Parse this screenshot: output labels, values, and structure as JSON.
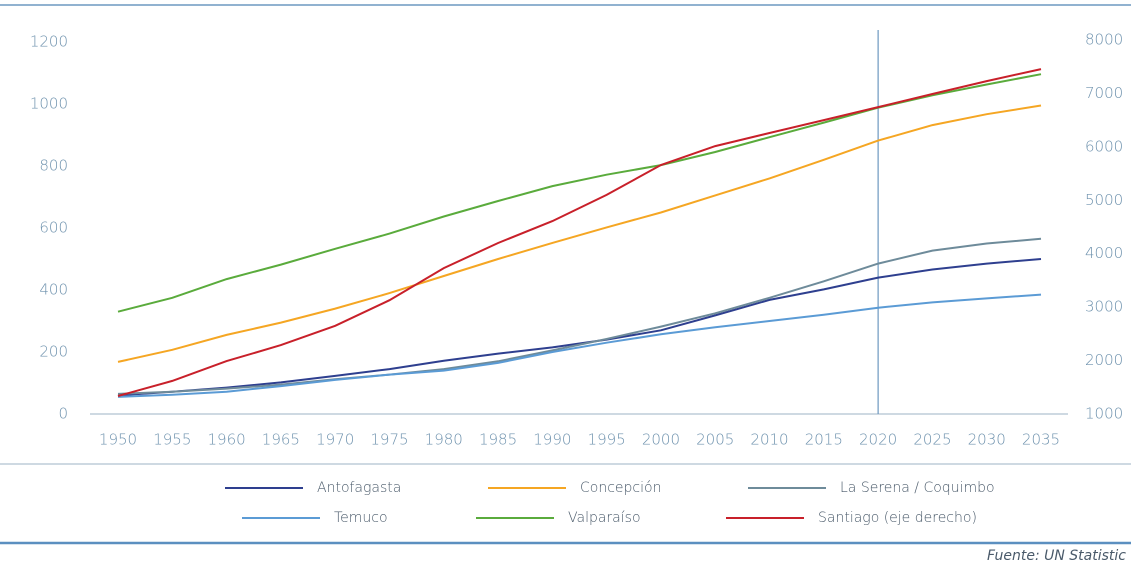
{
  "chart_data": {
    "type": "line",
    "x": [
      1950,
      1955,
      1960,
      1965,
      1970,
      1975,
      1980,
      1985,
      1990,
      1995,
      2000,
      2005,
      2010,
      2015,
      2020,
      2025,
      2030,
      2035
    ],
    "xlim": [
      1950,
      2035
    ],
    "ylim": [
      0,
      1200
    ],
    "yticks": [
      0,
      200,
      400,
      600,
      800,
      1000,
      1200
    ],
    "y2lim": [
      1000,
      8000
    ],
    "y2ticks": [
      1000,
      2000,
      3000,
      4000,
      5000,
      6000,
      7000,
      8000
    ],
    "vline": 2020,
    "series": [
      {
        "name": "Antofagasta",
        "color": "#2e3f8f",
        "values": [
          60,
          72,
          85,
          102,
          123,
          145,
          172,
          195,
          215,
          240,
          270,
          318,
          368,
          402,
          440,
          466,
          485,
          500
        ]
      },
      {
        "name": "Concepción",
        "color": "#f5a623",
        "values": [
          168,
          207,
          255,
          295,
          340,
          390,
          445,
          500,
          552,
          602,
          650,
          705,
          760,
          820,
          882,
          932,
          967,
          995
        ]
      },
      {
        "name": "La Serena / Coquimbo",
        "color": "#6e8b9a",
        "values": [
          65,
          72,
          82,
          95,
          112,
          127,
          145,
          170,
          205,
          242,
          282,
          325,
          375,
          428,
          485,
          527,
          550,
          565
        ]
      },
      {
        "name": "Temuco",
        "color": "#5b9bd5",
        "values": [
          55,
          62,
          72,
          90,
          110,
          127,
          140,
          165,
          200,
          230,
          257,
          280,
          300,
          320,
          343,
          360,
          373,
          385
        ]
      },
      {
        "name": "Valparaíso",
        "color": "#5aab3c",
        "values": [
          330,
          375,
          435,
          482,
          533,
          582,
          637,
          687,
          735,
          772,
          803,
          845,
          893,
          940,
          988,
          1028,
          1063,
          1096
        ]
      },
      {
        "name": "Santiago (eje derecho)",
        "color": "#c8202a",
        "axis": "y2",
        "values": [
          1337,
          1620,
          1990,
          2290,
          2650,
          3130,
          3730,
          4200,
          4610,
          5100,
          5660,
          6015,
          6260,
          6500,
          6745,
          6990,
          7230,
          7455
        ]
      }
    ],
    "source": "Fuente: UN Statistic"
  }
}
